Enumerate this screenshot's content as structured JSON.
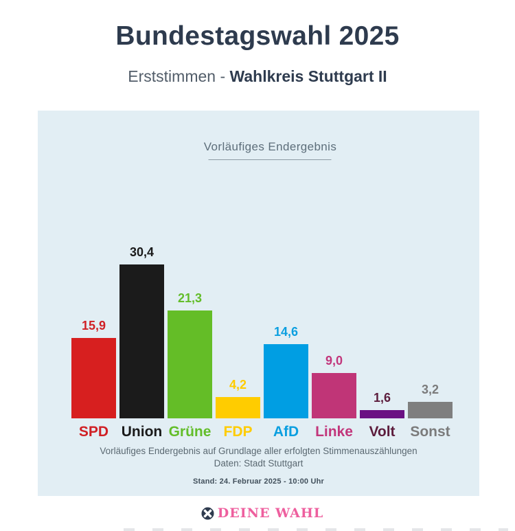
{
  "header": {
    "title": "Bundestagswahl 2025",
    "subtitle_prefix": "Erststimmen -",
    "subtitle_bold": "Wahlkreis Stuttgart II"
  },
  "panel": {
    "status_label": "Vorläufiges Endergebnis"
  },
  "chart_data": {
    "type": "bar",
    "title": "Vorläufiges Endergebnis",
    "unit": "percent",
    "categories": [
      "SPD",
      "Union",
      "Grüne",
      "FDP",
      "AfD",
      "Linke",
      "Volt",
      "Sonst"
    ],
    "values": [
      15.9,
      30.4,
      21.3,
      4.2,
      14.6,
      9.0,
      1.6,
      3.2
    ],
    "series": [
      {
        "name": "SPD",
        "value": 15.9,
        "display": "15,9",
        "bar_color": "#d71f1f",
        "text_color": "#d02025"
      },
      {
        "name": "Union",
        "value": 30.4,
        "display": "30,4",
        "bar_color": "#1b1b1b",
        "text_color": "#1a1a1a"
      },
      {
        "name": "Grüne",
        "value": 21.3,
        "display": "21,3",
        "bar_color": "#64bd27",
        "text_color": "#63bd2a"
      },
      {
        "name": "FDP",
        "value": 4.2,
        "display": "4,2",
        "bar_color": "#ffcc00",
        "text_color": "#ffcc00"
      },
      {
        "name": "AfD",
        "value": 14.6,
        "display": "14,6",
        "bar_color": "#009ee3",
        "text_color": "#0b9fe0"
      },
      {
        "name": "Linke",
        "value": 9.0,
        "display": "9,0",
        "bar_color": "#c03577",
        "text_color": "#c2367b"
      },
      {
        "name": "Volt",
        "value": 1.6,
        "display": "1,6",
        "bar_color": "#6a1183",
        "text_color": "#5c1c3c"
      },
      {
        "name": "Sonst",
        "value": 3.2,
        "display": "3,2",
        "bar_color": "#7f7f7f",
        "text_color": "#7b7b7b"
      }
    ],
    "ylim": [
      0,
      32
    ],
    "grid": false,
    "legend": "none",
    "xlabel": "",
    "ylabel": ""
  },
  "footer": {
    "note_line1": "Vorläufiges Endergebnis auf Grundlage aller erfolgten Stimmenauszählungen",
    "note_line2": "Daten: Stadt Stuttgart",
    "stand": "Stand: 24. Februar 2025  - 10:00 Uhr",
    "brand": "DEINE WAHL"
  },
  "colors": {
    "page_background": "#ffffff",
    "panel_background": "#e2eef4",
    "title": "#2e3b4e",
    "subtitle_gray": "#525d69",
    "status_gray": "#5d6e7a",
    "note_gray": "#5a6871",
    "stand_dark": "#42505c",
    "brand_pink": "#ee5f9e",
    "logo_navy": "#2e3b4e"
  }
}
